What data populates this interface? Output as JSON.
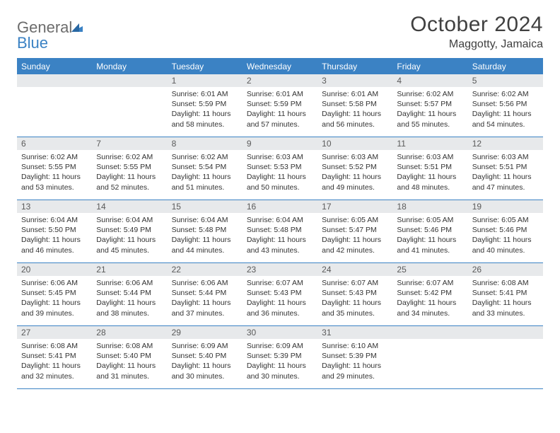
{
  "logo": {
    "line1": "General",
    "line2": "Blue"
  },
  "header": {
    "title": "October 2024",
    "location": "Maggotty, Jamaica"
  },
  "weekdays": [
    "Sunday",
    "Monday",
    "Tuesday",
    "Wednesday",
    "Thursday",
    "Friday",
    "Saturday"
  ],
  "colors": {
    "accent": "#3b82c4",
    "header_band": "#e7e9eb",
    "text": "#333333",
    "logo_gray": "#6c6c6c"
  },
  "layout": {
    "columns": 7,
    "rows": 5,
    "cell_font_size_pt": 8,
    "weekday_font_size_pt": 9,
    "title_font_size_pt": 22
  },
  "grid": [
    [
      {
        "empty": true
      },
      {
        "empty": true
      },
      {
        "day": "1",
        "sunrise": "Sunrise: 6:01 AM",
        "sunset": "Sunset: 5:59 PM",
        "daylight": "Daylight: 11 hours and 58 minutes."
      },
      {
        "day": "2",
        "sunrise": "Sunrise: 6:01 AM",
        "sunset": "Sunset: 5:59 PM",
        "daylight": "Daylight: 11 hours and 57 minutes."
      },
      {
        "day": "3",
        "sunrise": "Sunrise: 6:01 AM",
        "sunset": "Sunset: 5:58 PM",
        "daylight": "Daylight: 11 hours and 56 minutes."
      },
      {
        "day": "4",
        "sunrise": "Sunrise: 6:02 AM",
        "sunset": "Sunset: 5:57 PM",
        "daylight": "Daylight: 11 hours and 55 minutes."
      },
      {
        "day": "5",
        "sunrise": "Sunrise: 6:02 AM",
        "sunset": "Sunset: 5:56 PM",
        "daylight": "Daylight: 11 hours and 54 minutes."
      }
    ],
    [
      {
        "day": "6",
        "sunrise": "Sunrise: 6:02 AM",
        "sunset": "Sunset: 5:55 PM",
        "daylight": "Daylight: 11 hours and 53 minutes."
      },
      {
        "day": "7",
        "sunrise": "Sunrise: 6:02 AM",
        "sunset": "Sunset: 5:55 PM",
        "daylight": "Daylight: 11 hours and 52 minutes."
      },
      {
        "day": "8",
        "sunrise": "Sunrise: 6:02 AM",
        "sunset": "Sunset: 5:54 PM",
        "daylight": "Daylight: 11 hours and 51 minutes."
      },
      {
        "day": "9",
        "sunrise": "Sunrise: 6:03 AM",
        "sunset": "Sunset: 5:53 PM",
        "daylight": "Daylight: 11 hours and 50 minutes."
      },
      {
        "day": "10",
        "sunrise": "Sunrise: 6:03 AM",
        "sunset": "Sunset: 5:52 PM",
        "daylight": "Daylight: 11 hours and 49 minutes."
      },
      {
        "day": "11",
        "sunrise": "Sunrise: 6:03 AM",
        "sunset": "Sunset: 5:51 PM",
        "daylight": "Daylight: 11 hours and 48 minutes."
      },
      {
        "day": "12",
        "sunrise": "Sunrise: 6:03 AM",
        "sunset": "Sunset: 5:51 PM",
        "daylight": "Daylight: 11 hours and 47 minutes."
      }
    ],
    [
      {
        "day": "13",
        "sunrise": "Sunrise: 6:04 AM",
        "sunset": "Sunset: 5:50 PM",
        "daylight": "Daylight: 11 hours and 46 minutes."
      },
      {
        "day": "14",
        "sunrise": "Sunrise: 6:04 AM",
        "sunset": "Sunset: 5:49 PM",
        "daylight": "Daylight: 11 hours and 45 minutes."
      },
      {
        "day": "15",
        "sunrise": "Sunrise: 6:04 AM",
        "sunset": "Sunset: 5:48 PM",
        "daylight": "Daylight: 11 hours and 44 minutes."
      },
      {
        "day": "16",
        "sunrise": "Sunrise: 6:04 AM",
        "sunset": "Sunset: 5:48 PM",
        "daylight": "Daylight: 11 hours and 43 minutes."
      },
      {
        "day": "17",
        "sunrise": "Sunrise: 6:05 AM",
        "sunset": "Sunset: 5:47 PM",
        "daylight": "Daylight: 11 hours and 42 minutes."
      },
      {
        "day": "18",
        "sunrise": "Sunrise: 6:05 AM",
        "sunset": "Sunset: 5:46 PM",
        "daylight": "Daylight: 11 hours and 41 minutes."
      },
      {
        "day": "19",
        "sunrise": "Sunrise: 6:05 AM",
        "sunset": "Sunset: 5:46 PM",
        "daylight": "Daylight: 11 hours and 40 minutes."
      }
    ],
    [
      {
        "day": "20",
        "sunrise": "Sunrise: 6:06 AM",
        "sunset": "Sunset: 5:45 PM",
        "daylight": "Daylight: 11 hours and 39 minutes."
      },
      {
        "day": "21",
        "sunrise": "Sunrise: 6:06 AM",
        "sunset": "Sunset: 5:44 PM",
        "daylight": "Daylight: 11 hours and 38 minutes."
      },
      {
        "day": "22",
        "sunrise": "Sunrise: 6:06 AM",
        "sunset": "Sunset: 5:44 PM",
        "daylight": "Daylight: 11 hours and 37 minutes."
      },
      {
        "day": "23",
        "sunrise": "Sunrise: 6:07 AM",
        "sunset": "Sunset: 5:43 PM",
        "daylight": "Daylight: 11 hours and 36 minutes."
      },
      {
        "day": "24",
        "sunrise": "Sunrise: 6:07 AM",
        "sunset": "Sunset: 5:43 PM",
        "daylight": "Daylight: 11 hours and 35 minutes."
      },
      {
        "day": "25",
        "sunrise": "Sunrise: 6:07 AM",
        "sunset": "Sunset: 5:42 PM",
        "daylight": "Daylight: 11 hours and 34 minutes."
      },
      {
        "day": "26",
        "sunrise": "Sunrise: 6:08 AM",
        "sunset": "Sunset: 5:41 PM",
        "daylight": "Daylight: 11 hours and 33 minutes."
      }
    ],
    [
      {
        "day": "27",
        "sunrise": "Sunrise: 6:08 AM",
        "sunset": "Sunset: 5:41 PM",
        "daylight": "Daylight: 11 hours and 32 minutes."
      },
      {
        "day": "28",
        "sunrise": "Sunrise: 6:08 AM",
        "sunset": "Sunset: 5:40 PM",
        "daylight": "Daylight: 11 hours and 31 minutes."
      },
      {
        "day": "29",
        "sunrise": "Sunrise: 6:09 AM",
        "sunset": "Sunset: 5:40 PM",
        "daylight": "Daylight: 11 hours and 30 minutes."
      },
      {
        "day": "30",
        "sunrise": "Sunrise: 6:09 AM",
        "sunset": "Sunset: 5:39 PM",
        "daylight": "Daylight: 11 hours and 30 minutes."
      },
      {
        "day": "31",
        "sunrise": "Sunrise: 6:10 AM",
        "sunset": "Sunset: 5:39 PM",
        "daylight": "Daylight: 11 hours and 29 minutes."
      },
      {
        "empty": true
      },
      {
        "empty": true
      }
    ]
  ]
}
